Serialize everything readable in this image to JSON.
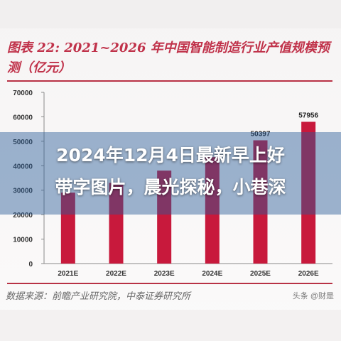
{
  "figure": {
    "title_line1": "图表 22: 2021~2026 年中国智能制造行业产值规模预",
    "title_line2": "测（亿元）",
    "source": "数据来源：前瞻产业研究院，中泰证券研究所",
    "watermark": "头条 @财是"
  },
  "overlay": {
    "line1": "2024年12月4日最新早上好",
    "line2": "带字图片，晨光探秘，小巷深"
  },
  "colors": {
    "bar": "#c8193c",
    "title": "#c0324a",
    "rule": "#b83245"
  },
  "chart_data": {
    "type": "bar",
    "categories": [
      "2021E",
      "2022E",
      "2023E",
      "2024E",
      "2025E",
      "2026E"
    ],
    "values": [
      29000,
      33000,
      38000,
      43500,
      50397,
      57956
    ],
    "data_labels": [
      "",
      "",
      "",
      "",
      "50397",
      "57956"
    ],
    "yticks": [
      "70000",
      "60000",
      "50000",
      "40000",
      "30000",
      "20000",
      "10000",
      "0"
    ],
    "ylim": [
      0,
      70000
    ],
    "grid": false,
    "legend": "none"
  }
}
